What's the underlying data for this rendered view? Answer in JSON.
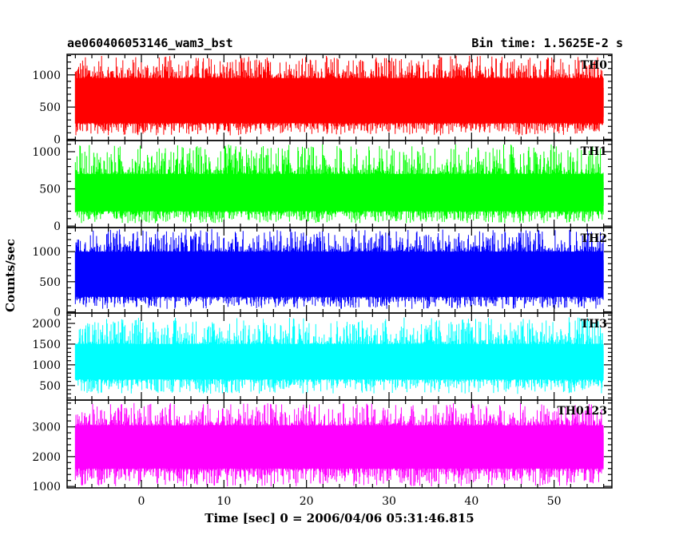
{
  "header": {
    "left": "ae060406053146_wam3_bst",
    "right": "Bin time: 1.5625E-2 s"
  },
  "chart_data": {
    "type": "line",
    "ylabel": "Counts/sec",
    "xlabel": "Time [sec] 0 = 2006/04/06 05:31:46.815",
    "xlim": [
      -9,
      57
    ],
    "x_range": [
      -8,
      56
    ],
    "xticks": [
      "0",
      "10",
      "20",
      "30",
      "40",
      "50"
    ],
    "xtick_values": [
      0,
      10,
      20,
      30,
      40,
      50
    ],
    "panels": [
      {
        "name": "TH0",
        "color": "#ff0000",
        "ylim": [
          -20,
          1320
        ],
        "yticks": [
          0,
          500,
          1000
        ],
        "ytick_labels": [
          "0",
          "500",
          "1000"
        ],
        "mean": 520,
        "band_low": 250,
        "band_high": 950,
        "spike_low": 60,
        "spike_high": 1300
      },
      {
        "name": "TH1",
        "color": "#00ff00",
        "ylim": [
          -20,
          1150
        ],
        "yticks": [
          0,
          500,
          1000
        ],
        "ytick_labels": [
          "0",
          "500",
          "1000"
        ],
        "mean": 400,
        "band_low": 200,
        "band_high": 700,
        "spike_low": 40,
        "spike_high": 1100
      },
      {
        "name": "TH2",
        "color": "#0000ff",
        "ylim": [
          -20,
          1400
        ],
        "yticks": [
          0,
          500,
          1000
        ],
        "ytick_labels": [
          "0",
          "500",
          "1000"
        ],
        "mean": 600,
        "band_low": 250,
        "band_high": 1000,
        "spike_low": 50,
        "spike_high": 1380
      },
      {
        "name": "TH3",
        "color": "#00ffff",
        "ylim": [
          150,
          2250
        ],
        "yticks": [
          500,
          1000,
          1500,
          2000
        ],
        "ytick_labels": [
          "500",
          "1000",
          "1500",
          "2000"
        ],
        "mean": 1050,
        "band_low": 650,
        "band_high": 1500,
        "spike_low": 300,
        "spike_high": 2150
      },
      {
        "name": "TH0123",
        "color": "#ff00ff",
        "ylim": [
          950,
          3900
        ],
        "yticks": [
          1000,
          2000,
          3000
        ],
        "ytick_labels": [
          "1000",
          "2000",
          "3000"
        ],
        "mean": 2350,
        "band_low": 1600,
        "band_high": 3050,
        "spike_low": 1000,
        "spike_high": 3800
      }
    ]
  }
}
